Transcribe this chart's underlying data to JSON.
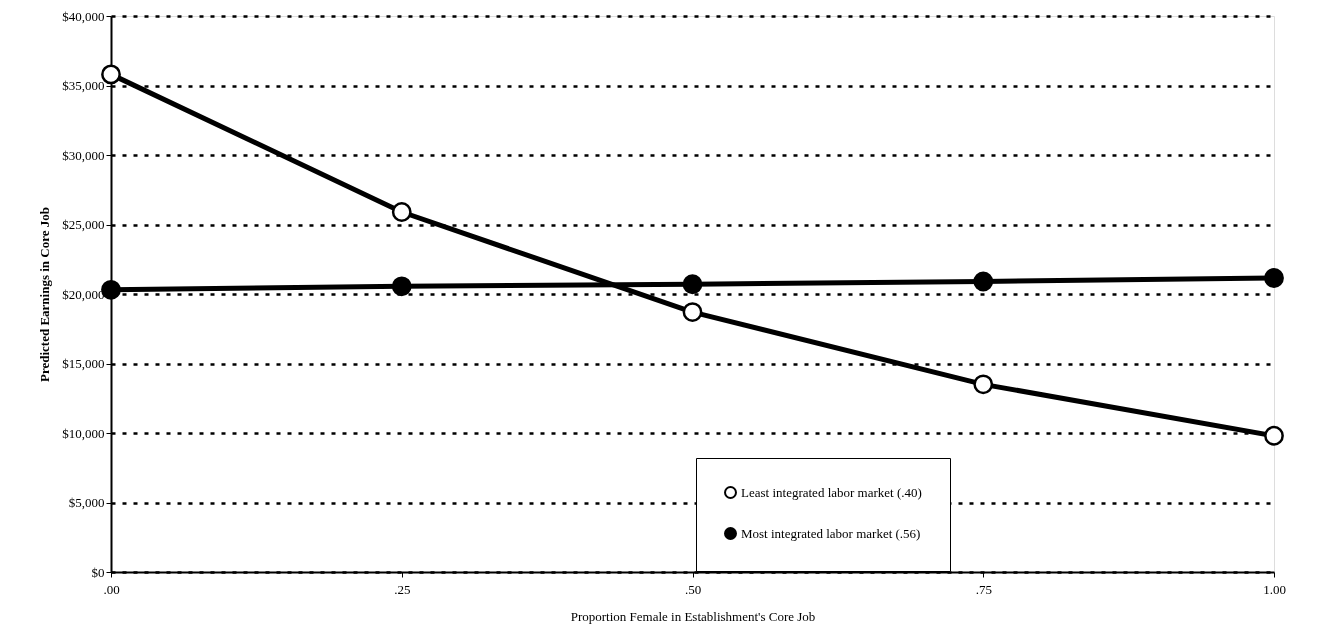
{
  "chart_data": {
    "type": "line",
    "xlabel": "Proportion Female in Establishment's Core Job",
    "ylabel": "Predicted Earnings in Core Job",
    "x": [
      0,
      0.25,
      0.5,
      0.75,
      1.0
    ],
    "series": [
      {
        "name": "Least integrated labor market (.40)",
        "color": "#000000",
        "values": [
          35800,
          25900,
          18700,
          13500,
          9800
        ]
      },
      {
        "name": "Most integrated labor market (.56)",
        "color": "#000000",
        "values": [
          20300,
          20550,
          20700,
          20900,
          21150
        ]
      }
    ],
    "xlim": [
      0,
      1
    ],
    "xticks": [
      {
        "value": 0,
        "label": ".00"
      },
      {
        "value": 0.25,
        "label": ".25"
      },
      {
        "value": 0.5,
        "label": ".50"
      },
      {
        "value": 0.75,
        "label": ".75"
      },
      {
        "value": 1.0,
        "label": "1.00"
      }
    ],
    "ylim": [
      0,
      40000
    ],
    "yticks": [
      {
        "value": 0,
        "label": "$0"
      },
      {
        "value": 5000,
        "label": "$5,000"
      },
      {
        "value": 10000,
        "label": "$10,000"
      },
      {
        "value": 15000,
        "label": "$15,000"
      },
      {
        "value": 20000,
        "label": "$20,000"
      },
      {
        "value": 25000,
        "label": "$25,000"
      },
      {
        "value": 30000,
        "label": "$30,000"
      },
      {
        "value": 35000,
        "label": "$35,000"
      },
      {
        "value": 40000,
        "label": "$40,000"
      }
    ],
    "grid": "y",
    "legend": "bottom right",
    "marker": "circle",
    "line_style": "solid"
  }
}
